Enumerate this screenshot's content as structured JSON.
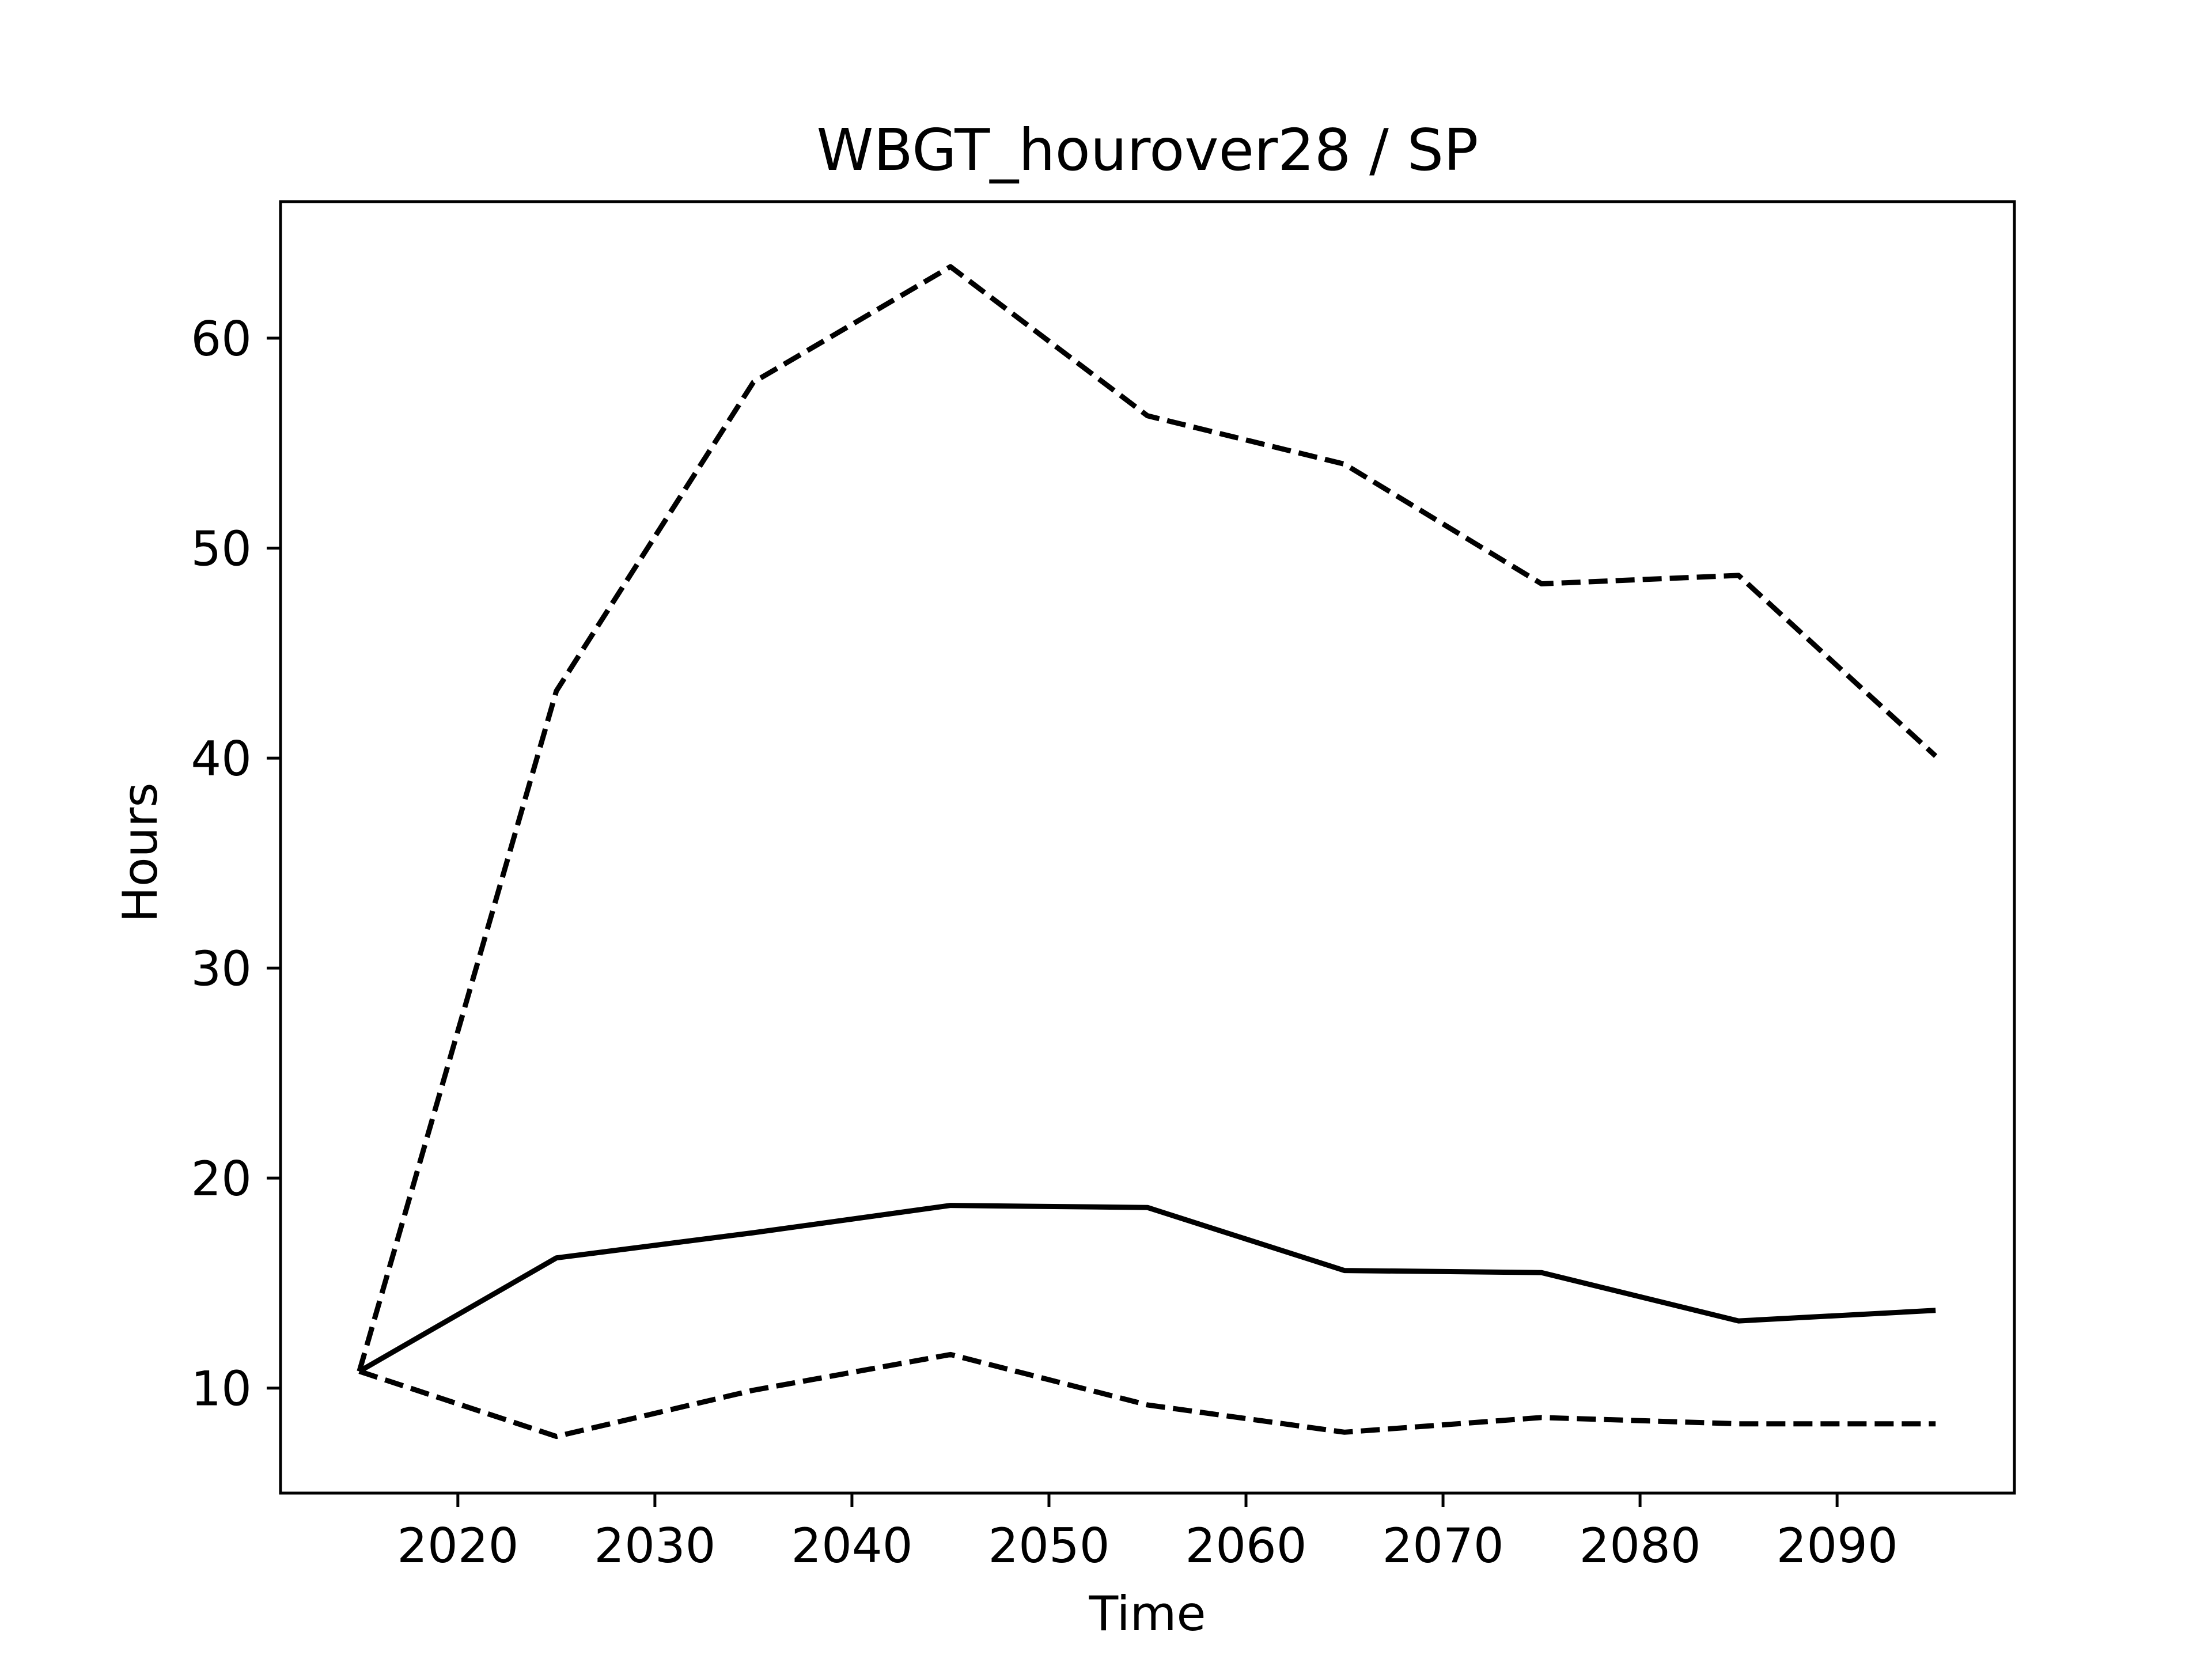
{
  "chart_data": {
    "type": "line",
    "title": "WBGT_hourover28 / SP",
    "xlabel": "Time",
    "ylabel": "Hours",
    "xlim": [
      2011,
      2099
    ],
    "ylim": [
      5,
      66.5
    ],
    "xticks": [
      2020,
      2030,
      2040,
      2050,
      2060,
      2070,
      2080,
      2090
    ],
    "yticks": [
      10,
      20,
      30,
      40,
      50,
      60
    ],
    "grid": false,
    "legend": "none",
    "x": [
      2015,
      2025,
      2035,
      2045,
      2055,
      2065,
      2075,
      2085,
      2095
    ],
    "series": [
      {
        "style": "solid",
        "color": "#000000",
        "values": [
          10.8,
          16.2,
          17.4,
          18.7,
          18.6,
          15.6,
          15.5,
          13.2,
          13.7
        ]
      },
      {
        "style": "dashed",
        "color": "#000000",
        "values": [
          10.8,
          43.2,
          57.9,
          63.4,
          56.3,
          54.0,
          48.3,
          48.7,
          40.1
        ]
      },
      {
        "style": "dashed",
        "color": "#000000",
        "values": [
          10.8,
          7.7,
          9.9,
          11.6,
          9.2,
          7.9,
          8.6,
          8.3,
          8.3
        ]
      }
    ]
  }
}
